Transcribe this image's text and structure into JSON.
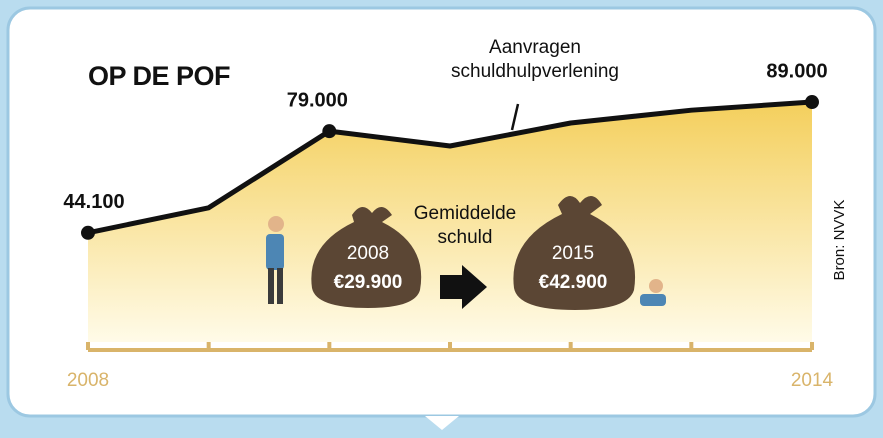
{
  "chart_data": {
    "type": "line",
    "title": "OP DE POF",
    "x": [
      2008,
      2009,
      2010,
      2011,
      2012,
      2013,
      2014
    ],
    "xlim": [
      2008,
      2014
    ],
    "xticks": [
      2008,
      2014
    ],
    "ylim": [
      20000,
      100000
    ],
    "series": [
      {
        "name": "Aanvragen schuldhulpverlening",
        "color": "#111111",
        "values": [
          44100,
          52700,
          79000,
          73900,
          81800,
          86200,
          89000
        ],
        "value_labels": [
          "44.100",
          null,
          "79.000",
          null,
          null,
          null,
          "89.000"
        ]
      }
    ],
    "fill_color": "#f5d46a",
    "axis_color": "#d9b46a",
    "annotations": {
      "debt_label": "Gemiddelde schuld",
      "bags": [
        {
          "year": "2008",
          "amount": "€29.900"
        },
        {
          "year": "2015",
          "amount": "€42.900"
        }
      ],
      "source": "Bron: NVVK"
    }
  }
}
